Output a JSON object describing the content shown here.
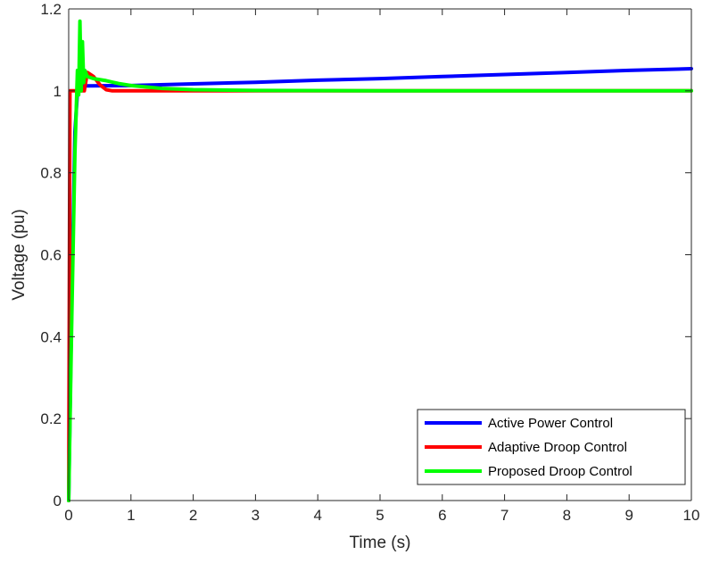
{
  "chart_data": {
    "type": "line",
    "title": "",
    "xlabel": "Time (s)",
    "ylabel": "Voltage (pu)",
    "xlim": [
      0,
      10
    ],
    "ylim": [
      0,
      1.2
    ],
    "xticks": [
      0,
      1,
      2,
      3,
      4,
      5,
      6,
      7,
      8,
      9,
      10
    ],
    "yticks": [
      0,
      0.2,
      0.4,
      0.6,
      0.8,
      1,
      1.2
    ],
    "xtick_labels": [
      "0",
      "1",
      "2",
      "3",
      "4",
      "5",
      "6",
      "7",
      "8",
      "9",
      "10"
    ],
    "ytick_labels": [
      "0",
      "0.2",
      "0.4",
      "0.6",
      "0.8",
      "1",
      "1.2"
    ],
    "grid": false,
    "legend_position": "bottom-right",
    "series": [
      {
        "name": "Active Power Control",
        "color": "#0000ff",
        "x": [
          0,
          0.05,
          0.1,
          0.15,
          0.2,
          0.25,
          0.3,
          1,
          2,
          3,
          4,
          5,
          6,
          7,
          8,
          9,
          10
        ],
        "y": [
          0,
          0.5,
          0.9,
          1.02,
          1.015,
          1.012,
          1.012,
          1.013,
          1.017,
          1.021,
          1.026,
          1.03,
          1.035,
          1.04,
          1.045,
          1.05,
          1.054
        ]
      },
      {
        "name": "Adaptive Droop Control",
        "color": "#ff0000",
        "x": [
          0,
          0.01,
          0.02,
          0.03,
          0.05,
          0.1,
          0.15,
          0.2,
          0.25,
          0.3,
          0.4,
          0.5,
          0.6,
          0.7,
          1,
          2,
          5,
          10
        ],
        "y": [
          0,
          0.5,
          1.0,
          1.0,
          1.0,
          1.0,
          1.0,
          1.0,
          1.0,
          1.045,
          1.035,
          1.015,
          1.003,
          1.0,
          1.0,
          1.0,
          1.0,
          1.0
        ]
      },
      {
        "name": "Proposed Droop Control",
        "color": "#00ff00",
        "x": [
          0,
          0.05,
          0.1,
          0.14,
          0.16,
          0.18,
          0.2,
          0.22,
          0.24,
          0.26,
          0.3,
          0.4,
          0.6,
          0.8,
          1,
          1.5,
          2,
          3,
          5,
          10
        ],
        "y": [
          0,
          0.45,
          0.85,
          1.05,
          0.99,
          1.17,
          1.0,
          1.12,
          1.02,
          1.05,
          1.035,
          1.03,
          1.025,
          1.018,
          1.013,
          1.006,
          1.003,
          1.001,
          1.0,
          1.0
        ]
      }
    ]
  }
}
